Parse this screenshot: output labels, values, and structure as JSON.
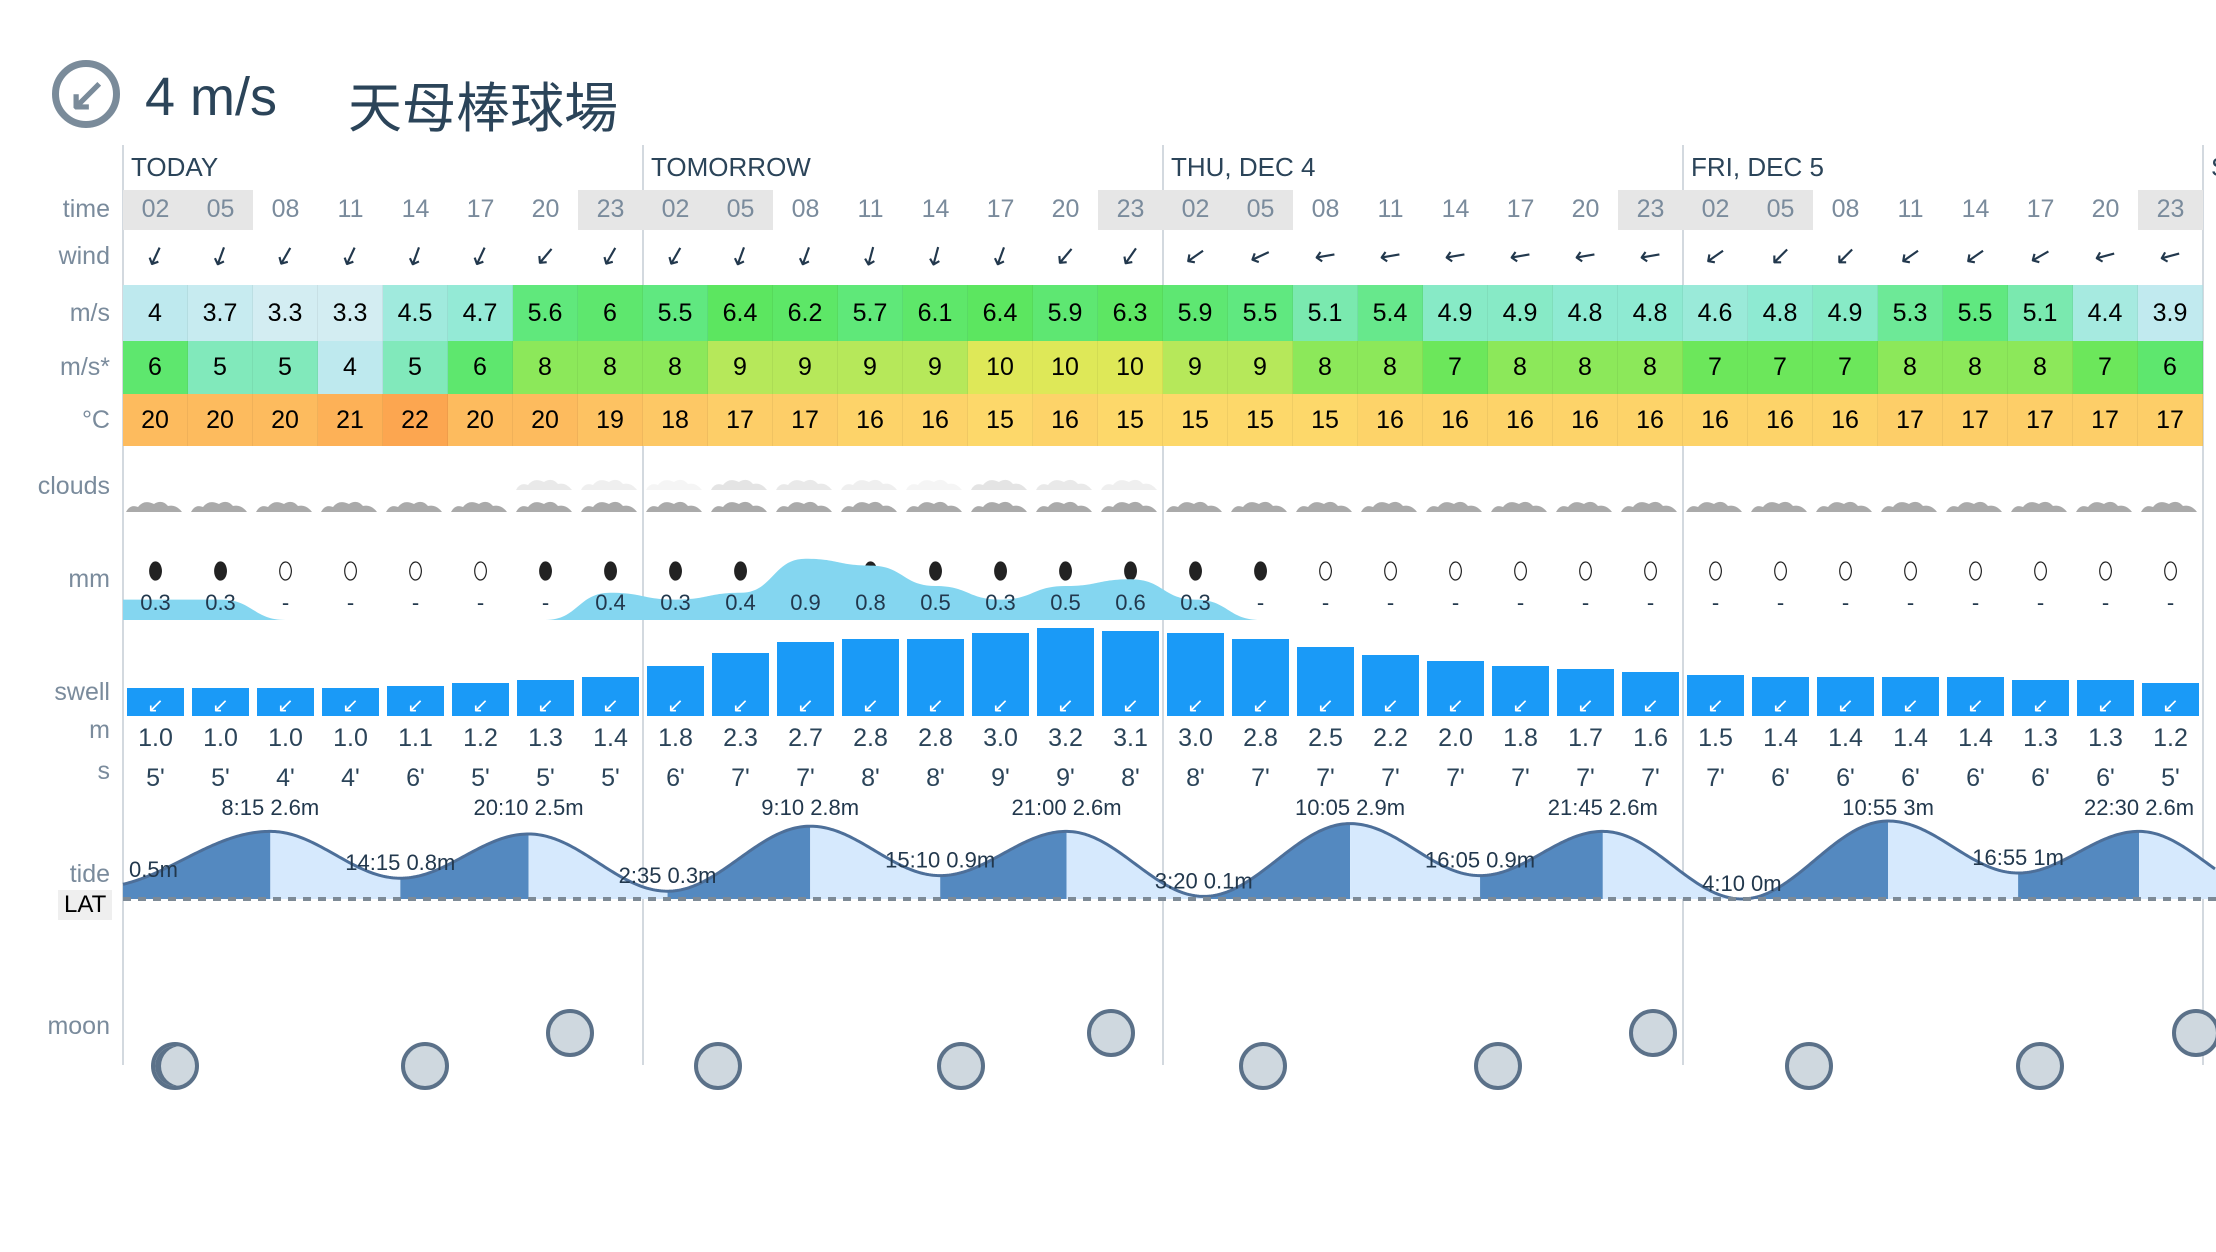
{
  "header": {
    "wind_icon": "wind-direction-arrow-icon",
    "wind_speed": "4 m/s",
    "location": "天母棒球場"
  },
  "days": [
    "TODAY",
    "TOMORROW",
    "THU, DEC 4",
    "FRI, DEC 5",
    "S"
  ],
  "row_labels": {
    "time": "time",
    "wind": "wind",
    "speed": "m/s",
    "gust": "m/s*",
    "temp": "°C",
    "clouds": "clouds",
    "rain": "mm",
    "swell": "swell",
    "swell_height": "m",
    "swell_period": "s",
    "tide": "tide",
    "lat": "LAT",
    "moon": "moon"
  },
  "times": [
    "02",
    "05",
    "08",
    "11",
    "14",
    "17",
    "20",
    "23",
    "02",
    "05",
    "08",
    "11",
    "14",
    "17",
    "20",
    "23",
    "02",
    "05",
    "08",
    "11",
    "14",
    "17",
    "20",
    "23",
    "02",
    "05",
    "08",
    "11",
    "14",
    "17",
    "20",
    "23"
  ],
  "highlighted_times": [
    0,
    1,
    7,
    8,
    9,
    15,
    16,
    17,
    23,
    24,
    25,
    31
  ],
  "wind_dir_rotation_deg": [
    25,
    20,
    30,
    25,
    20,
    25,
    40,
    30,
    30,
    20,
    20,
    15,
    15,
    20,
    40,
    35,
    55,
    65,
    80,
    80,
    80,
    80,
    80,
    80,
    55,
    45,
    45,
    55,
    55,
    60,
    75,
    75
  ],
  "wind_speed": [
    "4",
    "3.7",
    "3.3",
    "3.3",
    "4.5",
    "4.7",
    "5.6",
    "6",
    "5.5",
    "6.4",
    "6.2",
    "5.7",
    "6.1",
    "6.4",
    "5.9",
    "6.3",
    "5.9",
    "5.5",
    "5.1",
    "5.4",
    "4.9",
    "4.9",
    "4.8",
    "4.8",
    "4.6",
    "4.8",
    "4.9",
    "5.3",
    "5.5",
    "5.1",
    "4.4",
    "3.9"
  ],
  "wind_gust": [
    "6",
    "5",
    "5",
    "4",
    "5",
    "6",
    "8",
    "8",
    "8",
    "9",
    "9",
    "9",
    "9",
    "10",
    "10",
    "10",
    "9",
    "9",
    "8",
    "8",
    "7",
    "8",
    "8",
    "8",
    "7",
    "7",
    "7",
    "8",
    "8",
    "8",
    "7",
    "6"
  ],
  "temperature": [
    "20",
    "20",
    "20",
    "21",
    "22",
    "20",
    "20",
    "19",
    "18",
    "17",
    "17",
    "16",
    "16",
    "15",
    "16",
    "15",
    "15",
    "15",
    "15",
    "16",
    "16",
    "16",
    "16",
    "16",
    "16",
    "16",
    "16",
    "17",
    "17",
    "17",
    "17",
    "17"
  ],
  "rain": [
    "0.3",
    "0.3",
    "-",
    "-",
    "-",
    "-",
    "-",
    "0.4",
    "0.3",
    "0.4",
    "0.9",
    "0.8",
    "0.5",
    "0.3",
    "0.5",
    "0.6",
    "0.3",
    "-",
    "-",
    "-",
    "-",
    "-",
    "-",
    "-",
    "-",
    "-",
    "-",
    "-",
    "-",
    "-",
    "-",
    "-"
  ],
  "rain_drop_filled": [
    1,
    1,
    0,
    0,
    0,
    0,
    1,
    1,
    1,
    1,
    1,
    1,
    1,
    1,
    1,
    1,
    1,
    1,
    0,
    0,
    0,
    0,
    0,
    0,
    0,
    0,
    0,
    0,
    0,
    0,
    0,
    0
  ],
  "swell_height": [
    "1.0",
    "1.0",
    "1.0",
    "1.0",
    "1.1",
    "1.2",
    "1.3",
    "1.4",
    "1.8",
    "2.3",
    "2.7",
    "2.8",
    "2.8",
    "3.0",
    "3.2",
    "3.1",
    "3.0",
    "2.8",
    "2.5",
    "2.2",
    "2.0",
    "1.8",
    "1.7",
    "1.6",
    "1.5",
    "1.4",
    "1.4",
    "1.4",
    "1.4",
    "1.3",
    "1.3",
    "1.2"
  ],
  "swell_period": [
    "5'",
    "5'",
    "4'",
    "4'",
    "6'",
    "5'",
    "5'",
    "5'",
    "6'",
    "7'",
    "7'",
    "8'",
    "8'",
    "9'",
    "9'",
    "8'",
    "8'",
    "7'",
    "7'",
    "7'",
    "7'",
    "7'",
    "7'",
    "7'",
    "7'",
    "6'",
    "6'",
    "6'",
    "6'",
    "6'",
    "6'",
    "5'"
  ],
  "tide": {
    "start_label": "0.5m",
    "start_height_m": 0.5,
    "extremes": [
      {
        "day": 0,
        "time": "8:15",
        "height_m": 2.6,
        "type": "high",
        "label": "8:15 2.6m"
      },
      {
        "day": 0,
        "time": "14:15",
        "height_m": 0.8,
        "type": "low",
        "label": "14:15 0.8m"
      },
      {
        "day": 0,
        "time": "20:10",
        "height_m": 2.5,
        "type": "high",
        "label": "20:10 2.5m"
      },
      {
        "day": 1,
        "time": "2:35",
        "height_m": 0.3,
        "type": "low",
        "label": "2:35 0.3m"
      },
      {
        "day": 1,
        "time": "9:10",
        "height_m": 2.8,
        "type": "high",
        "label": "9:10 2.8m"
      },
      {
        "day": 1,
        "time": "15:10",
        "height_m": 0.9,
        "type": "low",
        "label": "15:10 0.9m"
      },
      {
        "day": 1,
        "time": "21:00",
        "height_m": 2.6,
        "type": "high",
        "label": "21:00 2.6m"
      },
      {
        "day": 2,
        "time": "3:20",
        "height_m": 0.1,
        "type": "low",
        "label": "3:20 0.1m"
      },
      {
        "day": 2,
        "time": "10:05",
        "height_m": 2.9,
        "type": "high",
        "label": "10:05 2.9m"
      },
      {
        "day": 2,
        "time": "16:05",
        "height_m": 0.9,
        "type": "low",
        "label": "16:05 0.9m"
      },
      {
        "day": 2,
        "time": "21:45",
        "height_m": 2.6,
        "type": "high",
        "label": "21:45 2.6m"
      },
      {
        "day": 3,
        "time": "4:10",
        "height_m": 0,
        "type": "low",
        "label": "4:10 0m"
      },
      {
        "day": 3,
        "time": "10:55",
        "height_m": 3,
        "type": "high",
        "label": "10:55 3m"
      },
      {
        "day": 3,
        "time": "16:55",
        "height_m": 1,
        "type": "low",
        "label": "16:55 1m"
      },
      {
        "day": 3,
        "time": "22:30",
        "height_m": 2.6,
        "type": "high",
        "label": "22:30 2.6m"
      }
    ]
  },
  "colors": {
    "swell_bar": "#1a9af7",
    "tide_rising": "#5489c0",
    "tide_falling": "#d6e9fd",
    "tide_line": "#4d6f99",
    "rain_area": "#84d6f0",
    "moon_fill": "#cfd8df",
    "moon_border": "#5b7189"
  }
}
